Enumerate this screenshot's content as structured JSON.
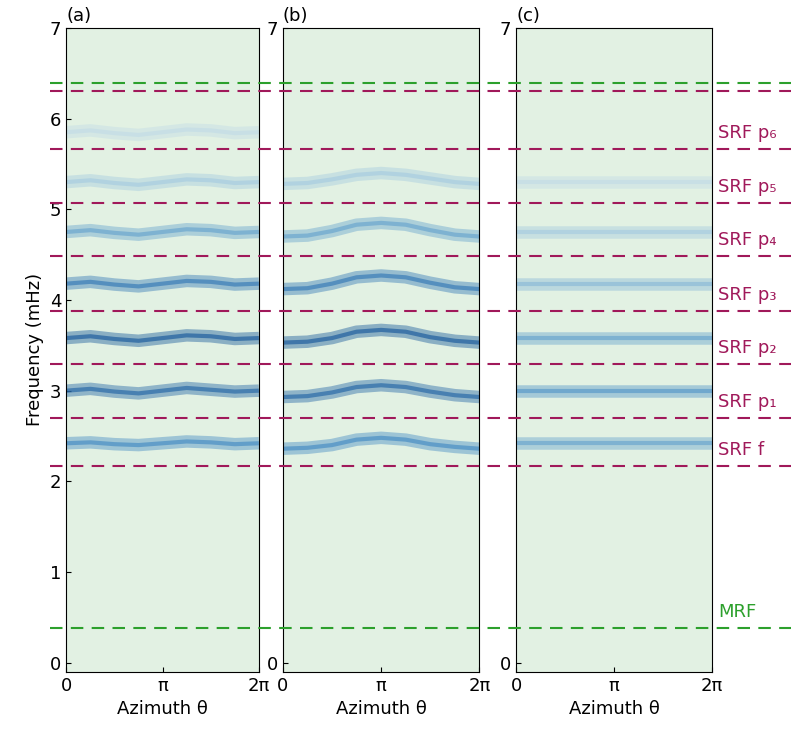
{
  "chart_data": [
    {
      "type": "line",
      "title": "(a)",
      "y_label": "Frequency (mHz)",
      "x_label": "Azimuth θ",
      "x": [
        0,
        0.7854,
        1.5708,
        2.3562,
        3.1416,
        3.927,
        4.7124,
        5.4978,
        6.2832
      ],
      "xlim": [
        0,
        6.2832
      ],
      "xticks": [
        {
          "value": 0,
          "label": "0"
        },
        {
          "value": 3.1416,
          "label": "π"
        },
        {
          "value": 6.2832,
          "label": "2π"
        }
      ],
      "ylim": [
        -0.1,
        7
      ],
      "yticks": [
        0,
        1,
        2,
        3,
        4,
        5,
        6,
        7
      ],
      "series": [
        {
          "color": "#4a8fc4",
          "values": [
            2.42,
            2.43,
            2.41,
            2.4,
            2.42,
            2.44,
            2.43,
            2.41,
            2.42
          ]
        },
        {
          "color": "#2a6aa8",
          "values": [
            3.0,
            3.02,
            2.99,
            2.97,
            3.0,
            3.03,
            3.01,
            2.99,
            3.0
          ]
        },
        {
          "color": "#1f5f9e",
          "values": [
            3.58,
            3.6,
            3.57,
            3.55,
            3.58,
            3.61,
            3.6,
            3.57,
            3.58
          ]
        },
        {
          "color": "#3a7db8",
          "values": [
            4.18,
            4.2,
            4.17,
            4.15,
            4.18,
            4.21,
            4.2,
            4.17,
            4.18
          ]
        },
        {
          "color": "#6ba6cf",
          "values": [
            4.75,
            4.77,
            4.74,
            4.72,
            4.75,
            4.78,
            4.77,
            4.74,
            4.75
          ]
        },
        {
          "color": "#a8cde0",
          "values": [
            5.3,
            5.32,
            5.29,
            5.27,
            5.3,
            5.33,
            5.32,
            5.29,
            5.3
          ]
        },
        {
          "color": "#c3dde6",
          "values": [
            5.85,
            5.87,
            5.84,
            5.82,
            5.85,
            5.88,
            5.87,
            5.84,
            5.85
          ]
        }
      ]
    },
    {
      "type": "line",
      "title": "(b)",
      "x_label": "Azimuth θ",
      "x": [
        0,
        0.7854,
        1.5708,
        2.3562,
        3.1416,
        3.927,
        4.7124,
        5.4978,
        6.2832
      ],
      "xlim": [
        0,
        6.2832
      ],
      "xticks": [
        {
          "value": 0,
          "label": "0"
        },
        {
          "value": 3.1416,
          "label": "π"
        },
        {
          "value": 6.2832,
          "label": "2π"
        }
      ],
      "ylim": [
        -0.1,
        7
      ],
      "yticks": [
        0,
        7
      ],
      "series": [
        {
          "color": "#4a8fc4",
          "values": [
            2.36,
            2.37,
            2.4,
            2.46,
            2.48,
            2.46,
            2.41,
            2.38,
            2.36
          ]
        },
        {
          "color": "#2a6aa8",
          "values": [
            2.93,
            2.94,
            2.98,
            3.04,
            3.06,
            3.04,
            2.99,
            2.95,
            2.93
          ]
        },
        {
          "color": "#1f5f9e",
          "values": [
            3.53,
            3.54,
            3.58,
            3.65,
            3.67,
            3.65,
            3.59,
            3.55,
            3.53
          ]
        },
        {
          "color": "#3a7db8",
          "values": [
            4.12,
            4.13,
            4.18,
            4.25,
            4.27,
            4.25,
            4.19,
            4.14,
            4.12
          ]
        },
        {
          "color": "#6ba6cf",
          "values": [
            4.7,
            4.71,
            4.76,
            4.83,
            4.85,
            4.83,
            4.77,
            4.72,
            4.7
          ]
        },
        {
          "color": "#a8cde0",
          "values": [
            5.28,
            5.29,
            5.33,
            5.38,
            5.4,
            5.38,
            5.34,
            5.3,
            5.28
          ]
        }
      ]
    },
    {
      "type": "line",
      "title": "(c)",
      "x_label": "Azimuth θ",
      "x": [
        0,
        0.7854,
        1.5708,
        2.3562,
        3.1416,
        3.927,
        4.7124,
        5.4978,
        6.2832
      ],
      "xlim": [
        0,
        6.2832
      ],
      "xticks": [
        {
          "value": 0,
          "label": "0"
        },
        {
          "value": 3.1416,
          "label": "π"
        },
        {
          "value": 6.2832,
          "label": "2π"
        }
      ],
      "ylim": [
        -0.1,
        7
      ],
      "yticks": [
        0,
        7
      ],
      "series": [
        {
          "color": "#6ba6cf",
          "values": [
            2.42,
            2.42,
            2.42,
            2.42,
            2.42,
            2.42,
            2.42,
            2.42,
            2.42
          ]
        },
        {
          "color": "#5a9ac9",
          "values": [
            3.0,
            3.0,
            3.0,
            3.0,
            3.0,
            3.0,
            3.0,
            3.0,
            3.0
          ]
        },
        {
          "color": "#6ba6cf",
          "values": [
            3.58,
            3.58,
            3.58,
            3.58,
            3.58,
            3.58,
            3.58,
            3.58,
            3.58
          ]
        },
        {
          "color": "#8dbbd8",
          "values": [
            4.18,
            4.18,
            4.18,
            4.18,
            4.18,
            4.18,
            4.18,
            4.18,
            4.18
          ]
        },
        {
          "color": "#a8cde0",
          "values": [
            4.75,
            4.75,
            4.75,
            4.75,
            4.75,
            4.75,
            4.75,
            4.75,
            4.75
          ]
        },
        {
          "color": "#c3dde6",
          "values": [
            5.3,
            5.3,
            5.3,
            5.3,
            5.3,
            5.3,
            5.3,
            5.3,
            5.3
          ]
        }
      ]
    }
  ],
  "reference_lines": [
    {
      "value": 6.39,
      "color": "#2ca02c"
    },
    {
      "value": 6.31,
      "color": "#a0195a"
    },
    {
      "value": 5.66,
      "color": "#a0195a",
      "label": "SRF p₆"
    },
    {
      "value": 5.07,
      "color": "#a0195a",
      "label": "SRF p₅"
    },
    {
      "value": 4.48,
      "color": "#a0195a",
      "label": "SRF p₄"
    },
    {
      "value": 3.88,
      "color": "#a0195a",
      "label": "SRF p₃"
    },
    {
      "value": 3.29,
      "color": "#a0195a",
      "label": "SRF p₂"
    },
    {
      "value": 2.7,
      "color": "#a0195a",
      "label": "SRF p₁"
    },
    {
      "value": 2.17,
      "color": "#a0195a",
      "label": "SRF f"
    },
    {
      "value": 0.38,
      "color": "#2ca02c",
      "label": "MRF"
    }
  ]
}
